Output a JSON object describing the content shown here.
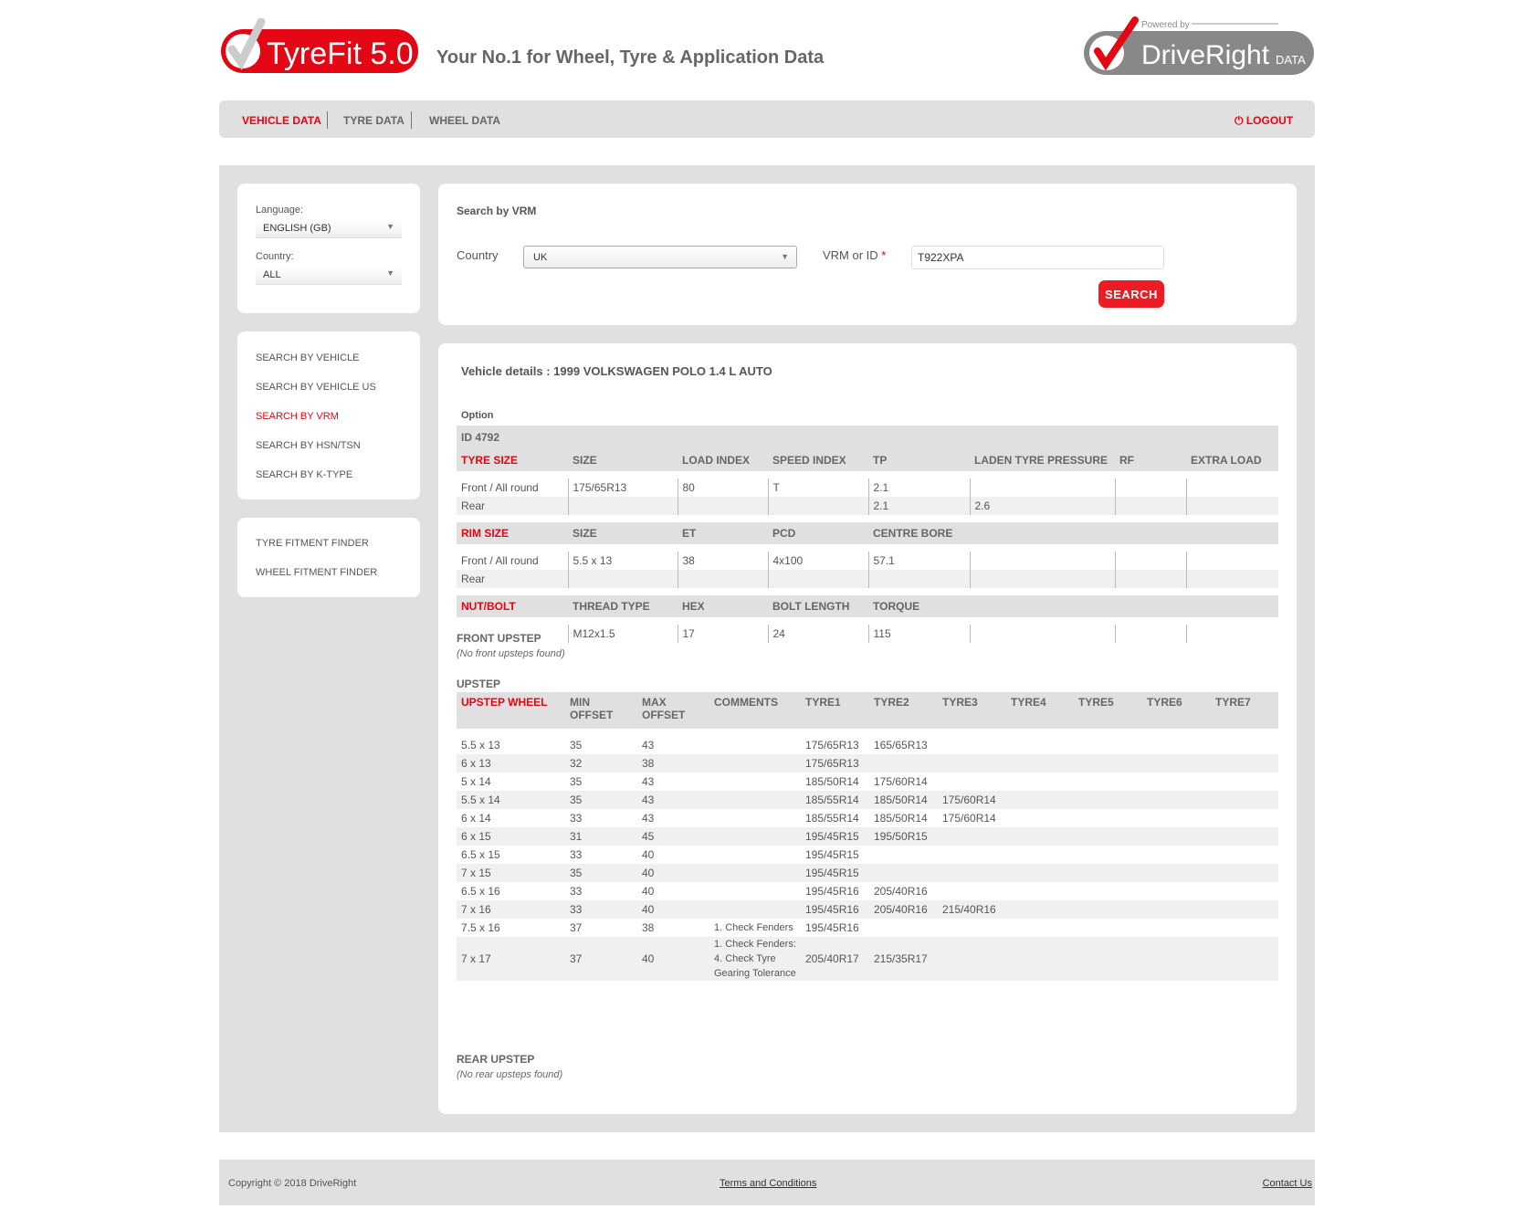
{
  "header": {
    "logo_text": "TyreFit 5.0",
    "tagline": "Your No.1 for Wheel, Tyre & Application Data",
    "powered_by": "Powered by",
    "partner_logo": "DriveRight DATA",
    "brand_color": "#e30613"
  },
  "nav": {
    "items": [
      "VEHICLE DATA",
      "TYRE DATA",
      "WHEEL DATA"
    ],
    "active": "VEHICLE DATA",
    "logout": "LOGOUT",
    "logout_icon": "power-icon"
  },
  "sidebar": {
    "language_label": "Language:",
    "language_value": "ENGLISH (GB)",
    "country_label": "Country:",
    "country_value": "ALL",
    "search_links": [
      "SEARCH BY VEHICLE",
      "SEARCH BY VEHICLE US",
      "SEARCH BY VRM",
      "SEARCH BY HSN/TSN",
      "SEARCH BY K-TYPE"
    ],
    "active": "SEARCH BY VRM",
    "finder_links": [
      "TYRE FITMENT FINDER",
      "WHEEL FITMENT FINDER"
    ]
  },
  "search": {
    "title": "Search by VRM",
    "country_label": "Country",
    "country_value": "UK",
    "vrm_label": "VRM or ID",
    "required_mark": "*",
    "vrm_value": "T922XPA",
    "button": "SEARCH"
  },
  "details": {
    "title": "Vehicle details : 1999 VOLKSWAGEN POLO 1.4 L AUTO",
    "option_label": "Option",
    "id_label": "ID 4792",
    "tyre_headers": [
      "TYRE SIZE",
      "SIZE",
      "LOAD INDEX",
      "SPEED INDEX",
      "TP",
      "LADEN TYRE PRESSURE",
      "RF",
      "EXTRA LOAD"
    ],
    "tyre_rows": [
      [
        "Front / All round",
        "175/65R13",
        "80",
        "T",
        "2.1",
        "",
        "",
        ""
      ],
      [
        "Rear",
        "",
        "",
        "",
        "2.1",
        "2.6",
        "",
        ""
      ]
    ],
    "rim_headers": [
      "RIM SIZE",
      "SIZE",
      "ET",
      "PCD",
      "CENTRE BORE",
      "",
      "",
      ""
    ],
    "rim_rows": [
      [
        "Front / All round",
        "5.5 x 13",
        "38",
        "4x100",
        "57.1",
        "",
        "",
        ""
      ],
      [
        "Rear",
        "",
        "",
        "",
        "",
        "",
        "",
        ""
      ]
    ],
    "nut_headers": [
      "NUT/BOLT",
      "THREAD TYPE",
      "HEX",
      "BOLT LENGTH",
      "TORQUE",
      "",
      "",
      ""
    ],
    "nut_rows": [
      [
        "",
        "M12x1.5",
        "17",
        "24",
        "115",
        "",
        "",
        ""
      ]
    ],
    "front_upstep_title": "FRONT UPSTEP",
    "front_upstep_note": "(No front upsteps found)",
    "upstep_title": "UPSTEP",
    "upstep_headers": [
      "UPSTEP WHEEL",
      "MIN OFFSET",
      "MAX OFFSET",
      "COMMENTS",
      "TYRE1",
      "TYRE2",
      "TYRE3",
      "TYRE4",
      "TYRE5",
      "TYRE6",
      "TYRE7"
    ],
    "upstep_rows": [
      [
        "5.5 x 13",
        "35",
        "43",
        "",
        "175/65R13",
        "165/65R13",
        "",
        "",
        "",
        "",
        ""
      ],
      [
        "6 x 13",
        "32",
        "38",
        "",
        "175/65R13",
        "",
        "",
        "",
        "",
        "",
        ""
      ],
      [
        "5 x 14",
        "35",
        "43",
        "",
        "185/50R14",
        "175/60R14",
        "",
        "",
        "",
        "",
        ""
      ],
      [
        "5.5 x 14",
        "35",
        "43",
        "",
        "185/55R14",
        "185/50R14",
        "175/60R14",
        "",
        "",
        "",
        ""
      ],
      [
        "6 x 14",
        "33",
        "43",
        "",
        "185/55R14",
        "185/50R14",
        "175/60R14",
        "",
        "",
        "",
        ""
      ],
      [
        "6 x 15",
        "31",
        "45",
        "",
        "195/45R15",
        "195/50R15",
        "",
        "",
        "",
        "",
        ""
      ],
      [
        "6.5 x 15",
        "33",
        "40",
        "",
        "195/45R15",
        "",
        "",
        "",
        "",
        "",
        ""
      ],
      [
        "7 x 15",
        "35",
        "40",
        "",
        "195/45R15",
        "",
        "",
        "",
        "",
        "",
        ""
      ],
      [
        "6.5 x 16",
        "33",
        "40",
        "",
        "195/45R16",
        "205/40R16",
        "",
        "",
        "",
        "",
        ""
      ],
      [
        "7 x 16",
        "33",
        "40",
        "",
        "195/45R16",
        "205/40R16",
        "215/40R16",
        "",
        "",
        "",
        ""
      ],
      [
        "7.5 x 16",
        "37",
        "38",
        "1. Check Fenders",
        "195/45R16",
        "",
        "",
        "",
        "",
        "",
        ""
      ],
      [
        "7 x 17",
        "37",
        "40",
        "1. Check Fenders: 4. Check Tyre Gearing Tolerance",
        "205/40R17",
        "215/35R17",
        "",
        "",
        "",
        "",
        ""
      ]
    ],
    "rear_upstep_title": "REAR UPSTEP",
    "rear_upstep_note": "(No rear upsteps found)"
  },
  "footer": {
    "copyright": "Copyright © 2018 DriveRight",
    "terms": "Terms and Conditions",
    "contact": "Contact Us"
  }
}
